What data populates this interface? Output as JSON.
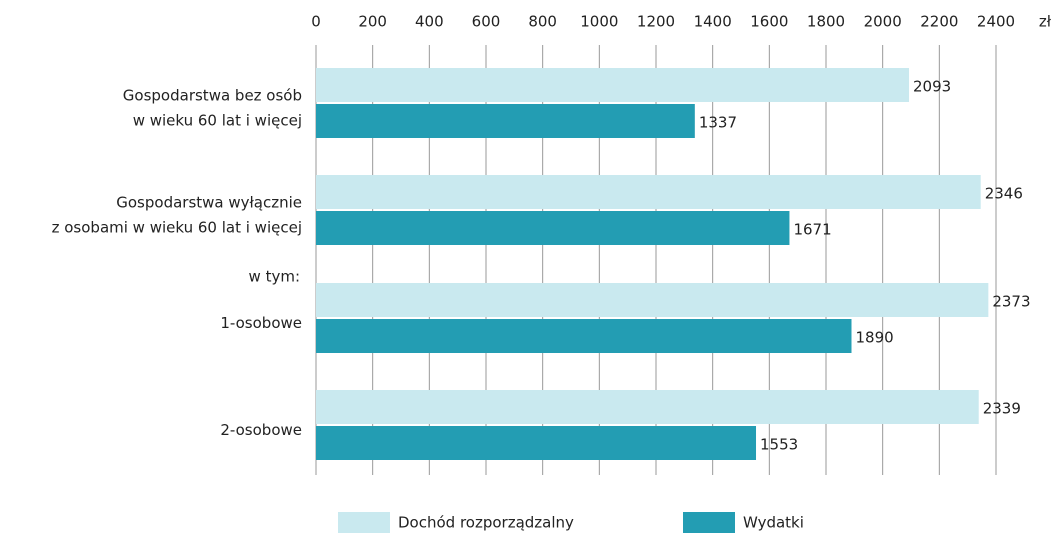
{
  "chart_data": {
    "type": "bar",
    "orientation": "horizontal",
    "categories": [
      "Gospodarstwa bez osób\nw wieku 60 lat i więcej",
      "Gospodarstwa wyłącznie\nz osobami w wieku 60 lat i więcej",
      "1-osobowe",
      "2-osobowe"
    ],
    "series": [
      {
        "name": "Dochód rozporządzalny",
        "color": "#c9e9ef",
        "values": [
          2093,
          2346,
          2373,
          2339
        ]
      },
      {
        "name": "Wydatki",
        "color": "#239db3",
        "values": [
          1337,
          1671,
          1890,
          1553
        ]
      }
    ],
    "xlim": [
      0,
      2400
    ],
    "xticks": [
      0,
      200,
      400,
      600,
      800,
      1000,
      1200,
      1400,
      1600,
      1800,
      2000,
      2200,
      2400
    ],
    "x_unit": "zł",
    "annotation": "w tym:",
    "grid": true,
    "legend": "bottom"
  }
}
